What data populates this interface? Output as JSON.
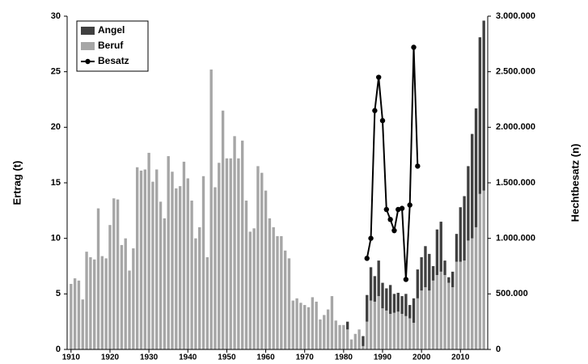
{
  "chart_data": {
    "type": "bar",
    "ylabel": "Ertrag (t)",
    "y2label": "Hechtbesatz (n)",
    "xlim": [
      1909,
      2017
    ],
    "xticks": [
      1910,
      1920,
      1930,
      1940,
      1950,
      1960,
      1970,
      1980,
      1990,
      2000,
      2010
    ],
    "ylim": [
      0,
      30
    ],
    "yticks": [
      0,
      5,
      10,
      15,
      20,
      25,
      30
    ],
    "y2lim": [
      0,
      3000000
    ],
    "y2ticks": [
      0,
      {
        "value": 500000,
        "label": "500.000"
      },
      {
        "value": 1000000,
        "label": "1.000.000"
      },
      {
        "value": 1500000,
        "label": "1.500.000"
      },
      {
        "value": 2000000,
        "label": "2.000.000"
      },
      {
        "value": 2500000,
        "label": "2.500.000"
      },
      {
        "value": 3000000,
        "label": "3.000.000"
      }
    ],
    "legend": "upper left",
    "series": [
      {
        "name": "Angel",
        "color": "#404040",
        "stacked_on": "Beruf",
        "x": [
          1981,
          1985,
          1986,
          1987,
          1988,
          1989,
          1990,
          1991,
          1992,
          1993,
          1994,
          1995,
          1996,
          1997,
          1998,
          1999,
          2000,
          2001,
          2002,
          2003,
          2004,
          2005,
          2006,
          2007,
          2008,
          2009,
          2010,
          2011,
          2012,
          2013,
          2014,
          2015,
          2016
        ],
        "values": [
          0.7,
          0.9,
          2.4,
          3.0,
          2.3,
          3.2,
          2.3,
          2.0,
          2.6,
          1.7,
          1.7,
          1.6,
          2.0,
          1.2,
          2.2,
          2.6,
          3.0,
          3.7,
          3.3,
          1.3,
          4.1,
          4.5,
          1.3,
          0.5,
          1.4,
          2.5,
          4.9,
          5.8,
          6.7,
          9.4,
          10.7,
          14.1,
          15.3
        ]
      },
      {
        "name": "Beruf",
        "color": "#a6a6a6",
        "x": [
          1910,
          1911,
          1912,
          1913,
          1914,
          1915,
          1916,
          1917,
          1918,
          1919,
          1920,
          1921,
          1922,
          1923,
          1924,
          1925,
          1926,
          1927,
          1928,
          1929,
          1930,
          1931,
          1932,
          1933,
          1934,
          1935,
          1936,
          1937,
          1938,
          1939,
          1940,
          1941,
          1942,
          1943,
          1944,
          1945,
          1946,
          1947,
          1948,
          1949,
          1950,
          1951,
          1952,
          1953,
          1954,
          1955,
          1956,
          1957,
          1958,
          1959,
          1960,
          1961,
          1962,
          1963,
          1964,
          1965,
          1966,
          1967,
          1968,
          1969,
          1970,
          1971,
          1972,
          1973,
          1974,
          1975,
          1976,
          1977,
          1978,
          1979,
          1980,
          1981,
          1982,
          1983,
          1984,
          1985,
          1986,
          1987,
          1988,
          1989,
          1990,
          1991,
          1992,
          1993,
          1994,
          1995,
          1996,
          1997,
          1998,
          1999,
          2000,
          2001,
          2002,
          2003,
          2004,
          2005,
          2006,
          2007,
          2008,
          2009,
          2010,
          2011,
          2012,
          2013,
          2014,
          2015,
          2016
        ],
        "values": [
          5.9,
          6.4,
          6.2,
          4.5,
          8.8,
          8.3,
          8.1,
          12.7,
          8.4,
          8.2,
          11.2,
          13.6,
          13.5,
          9.4,
          10.0,
          7.1,
          9.1,
          16.4,
          16.1,
          16.2,
          17.7,
          15.1,
          16.2,
          13.3,
          11.8,
          17.4,
          16.0,
          14.5,
          14.7,
          16.9,
          15.4,
          13.4,
          10.0,
          11.0,
          15.6,
          8.3,
          25.2,
          14.6,
          16.8,
          21.5,
          17.2,
          17.2,
          19.2,
          17.2,
          18.8,
          13.4,
          10.6,
          10.9,
          16.5,
          15.9,
          14.3,
          11.8,
          11.0,
          10.2,
          10.2,
          8.9,
          8.2,
          4.4,
          4.6,
          4.2,
          4.0,
          3.8,
          4.7,
          4.3,
          2.7,
          3.1,
          3.6,
          4.8,
          2.6,
          2.2,
          2.2,
          1.8,
          0.9,
          1.4,
          1.8,
          0.3,
          2.5,
          4.4,
          4.3,
          4.8,
          3.7,
          3.5,
          3.2,
          3.3,
          3.4,
          3.2,
          3.0,
          2.8,
          2.4,
          4.6,
          5.3,
          5.6,
          5.3,
          6.2,
          6.7,
          7.0,
          6.7,
          6.0,
          5.6,
          7.9,
          7.9,
          8.0,
          9.8,
          10.0,
          11.0,
          14.0,
          14.3
        ]
      },
      {
        "name": "Besatz",
        "color": "#000000",
        "type": "line",
        "axis": "y2",
        "x": [
          1986,
          1987,
          1988,
          1989,
          1990,
          1991,
          1992,
          1993,
          1994,
          1995,
          1996,
          1997,
          1998,
          1999
        ],
        "values": [
          820000,
          1000000,
          2150000,
          2450000,
          2060000,
          1260000,
          1170000,
          1070000,
          1260000,
          1270000,
          630000,
          1300000,
          2720000,
          1650000
        ]
      }
    ]
  }
}
